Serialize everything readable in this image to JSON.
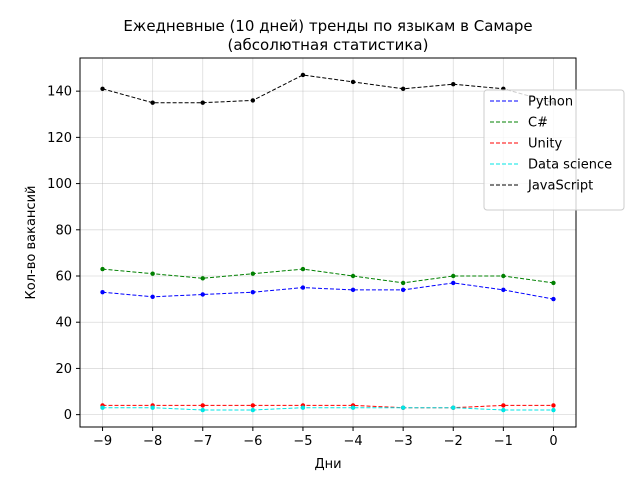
{
  "chart_data": {
    "type": "line",
    "title": "Ежедневные (10 дней) тренды по языкам в Самаре",
    "subtitle": "(абсолютная статистика)",
    "xlabel": "Дни",
    "ylabel": "Кол-во вакансий",
    "x": [
      -9,
      -8,
      -7,
      -6,
      -5,
      -4,
      -3,
      -2,
      -1,
      0
    ],
    "x_tick_labels": [
      "−9",
      "−8",
      "−7",
      "−6",
      "−5",
      "−4",
      "−3",
      "−2",
      "−1",
      "0"
    ],
    "xlim": [
      -9.45,
      0.45
    ],
    "ylim": [
      -5.35,
      154.35
    ],
    "y_ticks": [
      0,
      20,
      40,
      60,
      80,
      100,
      120,
      140
    ],
    "grid": true,
    "legend_position": "top-right",
    "series": [
      {
        "name": "Python",
        "color": "#0000ff",
        "values": [
          53,
          51,
          52,
          53,
          55,
          54,
          54,
          57,
          54,
          50
        ]
      },
      {
        "name": "C#",
        "color": "#008000",
        "values": [
          63,
          61,
          59,
          61,
          63,
          60,
          57,
          60,
          60,
          57
        ]
      },
      {
        "name": "Unity",
        "color": "#ff0000",
        "values": [
          4,
          4,
          4,
          4,
          4,
          4,
          3,
          3,
          4,
          4
        ]
      },
      {
        "name": "Data science",
        "color": "#00e5e5",
        "values": [
          3,
          3,
          2,
          2,
          3,
          3,
          3,
          3,
          2,
          2
        ]
      },
      {
        "name": "JavaScript",
        "color": "#000000",
        "values": [
          141,
          135,
          135,
          136,
          147,
          144,
          141,
          143,
          141,
          135
        ]
      }
    ]
  }
}
